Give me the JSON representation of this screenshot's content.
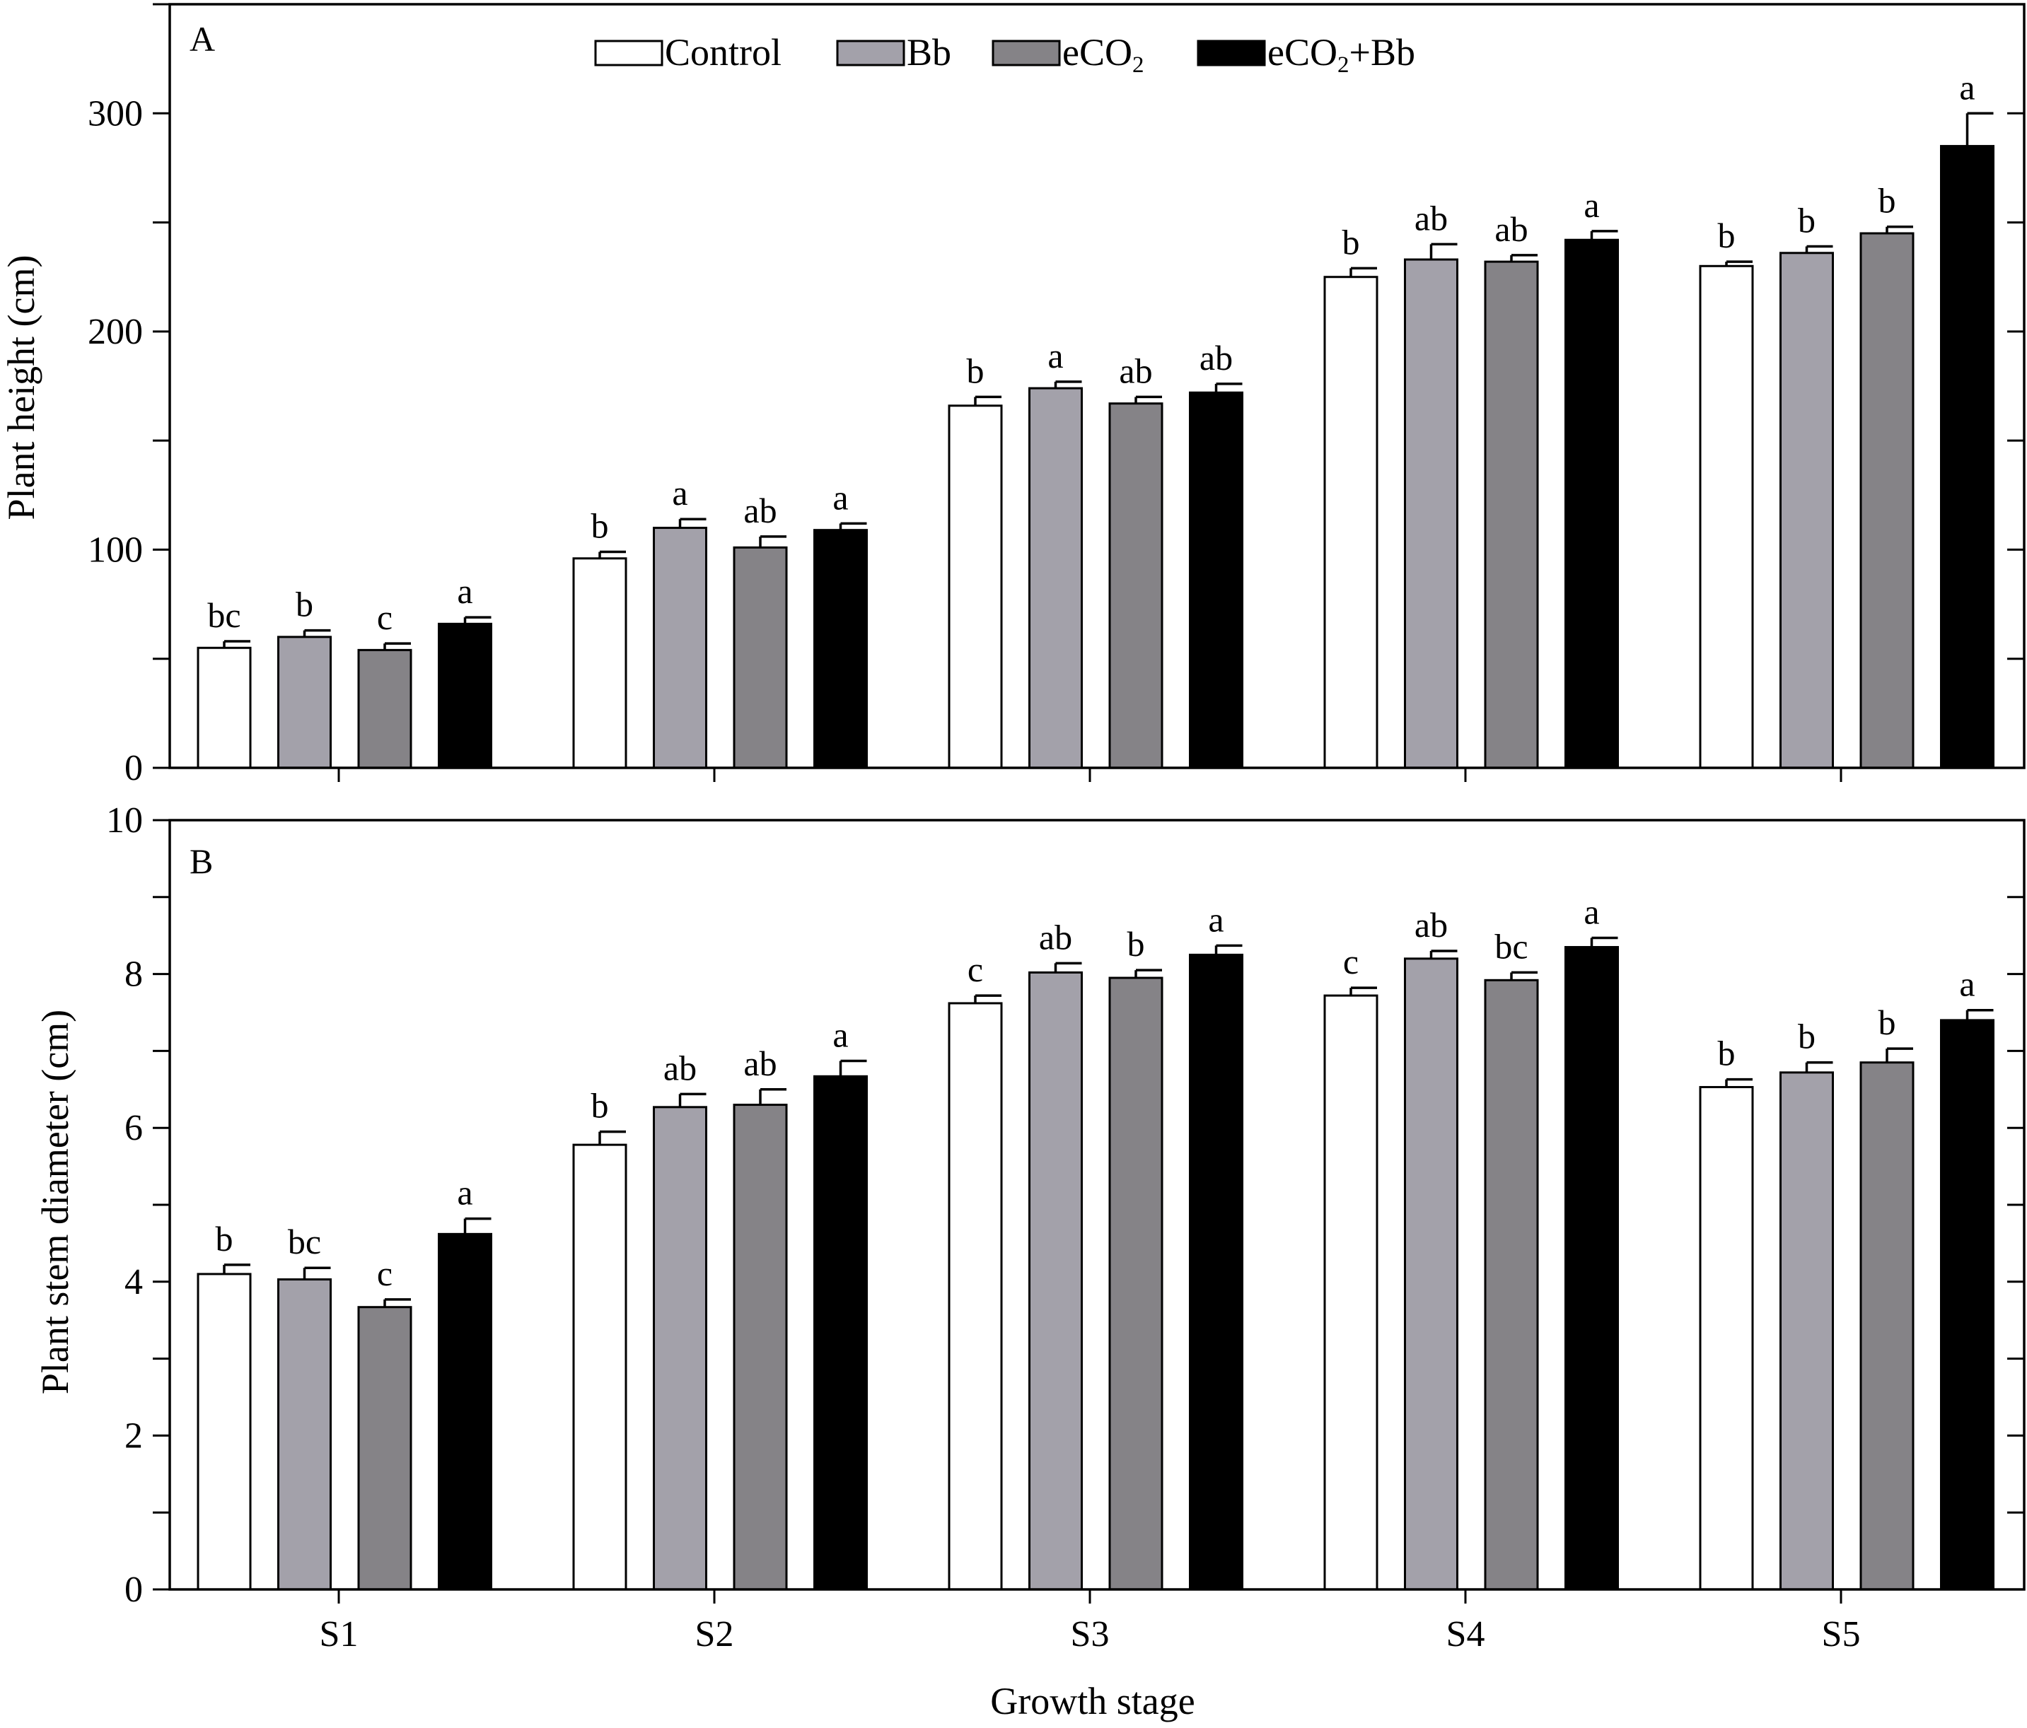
{
  "legend": {
    "items": [
      {
        "label": "Control",
        "color": "#ffffff"
      },
      {
        "label": "Bb",
        "color": "#a3a1aa"
      },
      {
        "label_main": "eCO",
        "label_sub": "2",
        "label_rest": "",
        "color": "#858387"
      },
      {
        "label_main": "eCO",
        "label_sub": "2",
        "label_rest": "+Bb",
        "color": "#000000"
      }
    ]
  },
  "chart_data": [
    {
      "type": "bar",
      "panel_label": "A",
      "title": "",
      "xlabel": "",
      "ylabel": "Plant height (cm)",
      "categories": [
        "S1",
        "S2",
        "S3",
        "S4",
        "S5"
      ],
      "ylim": [
        0,
        350
      ],
      "yticks": [
        0,
        100,
        200,
        300
      ],
      "series": [
        {
          "name": "Control",
          "color": "#ffffff",
          "values": [
            55,
            96,
            166,
            225,
            230
          ],
          "errors": [
            3,
            3,
            4,
            4,
            2
          ],
          "letters": [
            "bc",
            "b",
            "b",
            "b",
            "b"
          ]
        },
        {
          "name": "Bb",
          "color": "#a3a1aa",
          "values": [
            60,
            110,
            174,
            233,
            236
          ],
          "errors": [
            3,
            4,
            3,
            7,
            3
          ],
          "letters": [
            "b",
            "a",
            "a",
            "ab",
            "b"
          ]
        },
        {
          "name": "eCO2",
          "color": "#858387",
          "values": [
            54,
            101,
            167,
            232,
            245
          ],
          "errors": [
            3,
            5,
            3,
            3,
            3
          ],
          "letters": [
            "c",
            "ab",
            "ab",
            "ab",
            "b"
          ]
        },
        {
          "name": "eCO2+Bb",
          "color": "#000000",
          "values": [
            66,
            109,
            172,
            242,
            285
          ],
          "errors": [
            3,
            3,
            4,
            4,
            15
          ],
          "letters": [
            "a",
            "a",
            "ab",
            "a",
            "a"
          ]
        }
      ],
      "grid": false,
      "legend_position": "top-center"
    },
    {
      "type": "bar",
      "panel_label": "B",
      "title": "",
      "xlabel": "Growth stage",
      "ylabel": "Plant stem diameter (cm)",
      "categories": [
        "S1",
        "S2",
        "S3",
        "S4",
        "S5"
      ],
      "ylim": [
        0,
        10
      ],
      "yticks": [
        0,
        2,
        4,
        6,
        8,
        10
      ],
      "series": [
        {
          "name": "Control",
          "color": "#ffffff",
          "values": [
            4.1,
            5.78,
            7.62,
            7.72,
            6.53
          ],
          "errors": [
            0.12,
            0.17,
            0.1,
            0.1,
            0.1
          ],
          "letters": [
            "b",
            "b",
            "c",
            "c",
            "b"
          ]
        },
        {
          "name": "Bb",
          "color": "#a3a1aa",
          "values": [
            4.03,
            6.27,
            8.02,
            8.2,
            6.72
          ],
          "errors": [
            0.15,
            0.17,
            0.12,
            0.1,
            0.13
          ],
          "letters": [
            "bc",
            "ab",
            "ab",
            "ab",
            "b"
          ]
        },
        {
          "name": "eCO2",
          "color": "#858387",
          "values": [
            3.67,
            6.3,
            7.95,
            7.92,
            6.85
          ],
          "errors": [
            0.1,
            0.2,
            0.1,
            0.1,
            0.18
          ],
          "letters": [
            "c",
            "ab",
            "b",
            "bc",
            "b"
          ]
        },
        {
          "name": "eCO2+Bb",
          "color": "#000000",
          "values": [
            4.62,
            6.67,
            8.25,
            8.35,
            7.4
          ],
          "errors": [
            0.2,
            0.2,
            0.12,
            0.12,
            0.13
          ],
          "letters": [
            "a",
            "a",
            "a",
            "a",
            "a"
          ]
        }
      ],
      "grid": false
    }
  ]
}
